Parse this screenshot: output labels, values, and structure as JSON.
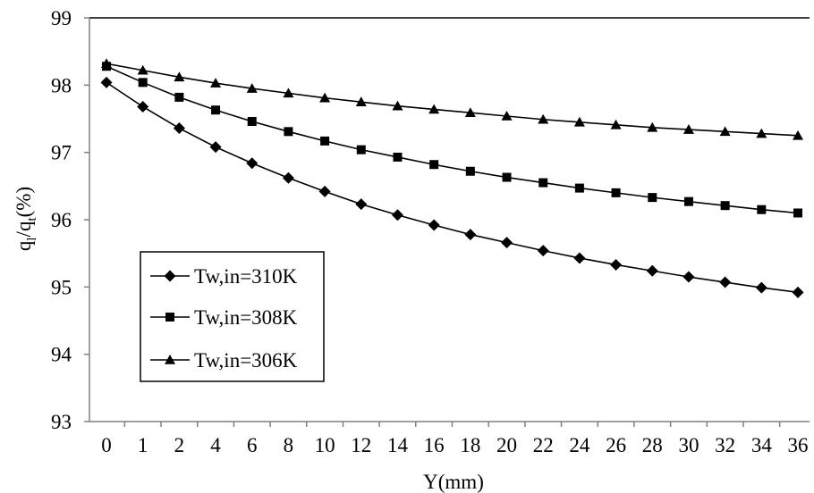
{
  "chart_data": {
    "type": "line",
    "title": "",
    "xlabel": "Y(mm)",
    "ylabel_main": "q",
    "ylabel_sub1": "l",
    "ylabel_sep": "/q",
    "ylabel_sub2": "t",
    "ylabel_unit": "(%)",
    "categories": [
      "0",
      "1",
      "2",
      "4",
      "6",
      "8",
      "10",
      "12",
      "14",
      "16",
      "18",
      "20",
      "22",
      "24",
      "26",
      "28",
      "30",
      "32",
      "34",
      "36"
    ],
    "ylim": [
      93,
      99
    ],
    "yticks": [
      "93",
      "94",
      "95",
      "96",
      "97",
      "98",
      "99"
    ],
    "legend_position": "lower-left",
    "series": [
      {
        "name": "Tw,in=310K",
        "marker": "diamond",
        "values": [
          98.04,
          97.68,
          97.36,
          97.08,
          96.84,
          96.62,
          96.42,
          96.23,
          96.07,
          95.92,
          95.78,
          95.66,
          95.54,
          95.43,
          95.33,
          95.24,
          95.15,
          95.07,
          94.99,
          94.92
        ]
      },
      {
        "name": "Tw,in=308K",
        "marker": "square",
        "values": [
          98.28,
          98.04,
          97.82,
          97.63,
          97.46,
          97.31,
          97.17,
          97.04,
          96.93,
          96.82,
          96.72,
          96.63,
          96.55,
          96.47,
          96.4,
          96.33,
          96.27,
          96.21,
          96.15,
          96.1
        ]
      },
      {
        "name": "Tw,in=306K",
        "marker": "triangle",
        "values": [
          98.32,
          98.22,
          98.12,
          98.03,
          97.95,
          97.88,
          97.81,
          97.75,
          97.69,
          97.64,
          97.59,
          97.54,
          97.49,
          97.45,
          97.41,
          97.37,
          97.34,
          97.31,
          97.28,
          97.25
        ]
      }
    ],
    "colors": {
      "line": "#000000",
      "axis": "#808080",
      "gridline": "#000000"
    }
  }
}
